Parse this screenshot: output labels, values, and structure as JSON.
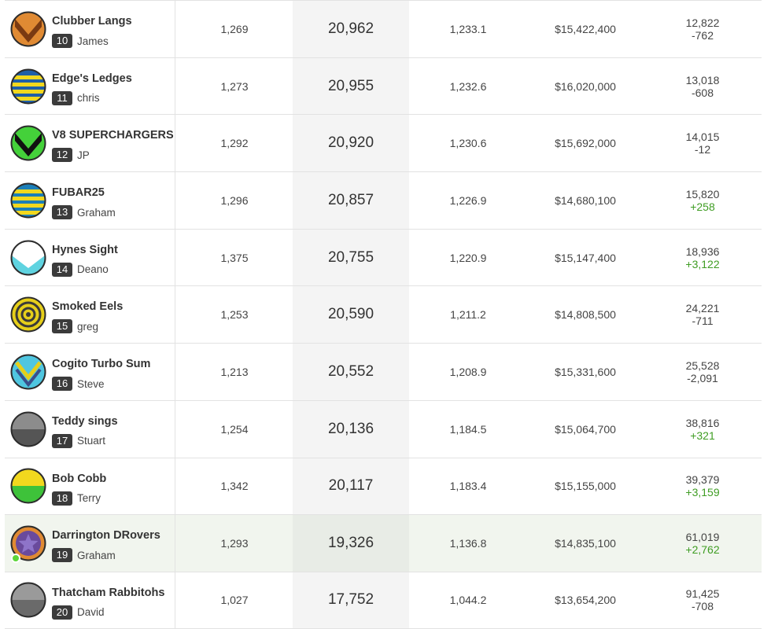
{
  "rows": [
    {
      "team": "Clubber Langs",
      "rank": "10",
      "coach": "James",
      "games": "1,269",
      "points": "20,962",
      "average": "1,233.1",
      "value": "$15,422,400",
      "overall_rank": "12,822",
      "rank_change": "-762",
      "change_dir": "neg",
      "logo": "chevron-down-icon",
      "logo_colors": [
        "#e08a33",
        "#7a3a12"
      ],
      "highlight": false
    },
    {
      "team": "Edge's Ledges",
      "rank": "11",
      "coach": "chris",
      "games": "1,273",
      "points": "20,955",
      "average": "1,232.6",
      "value": "$16,020,000",
      "overall_rank": "13,018",
      "rank_change": "-608",
      "change_dir": "neg",
      "logo": "horizontal-stripes-icon",
      "logo_colors": [
        "#f2d81e",
        "#1f5fa8"
      ],
      "highlight": false
    },
    {
      "team": "V8 SUPERCHARGERS",
      "rank": "12",
      "coach": "JP",
      "games": "1,292",
      "points": "20,920",
      "average": "1,230.6",
      "value": "$15,692,000",
      "overall_rank": "14,015",
      "rank_change": "-12",
      "change_dir": "neg",
      "logo": "chevron-down-icon",
      "logo_colors": [
        "#44d13a",
        "#111111"
      ],
      "highlight": false
    },
    {
      "team": "FUBAR25",
      "rank": "13",
      "coach": "Graham",
      "games": "1,296",
      "points": "20,857",
      "average": "1,226.9",
      "value": "$14,680,100",
      "overall_rank": "15,820",
      "rank_change": "+258",
      "change_dir": "pos",
      "logo": "horizontal-stripes-icon",
      "logo_colors": [
        "#f2d81e",
        "#1b7fb8"
      ],
      "highlight": false
    },
    {
      "team": "Hynes Sight",
      "rank": "14",
      "coach": "Deano",
      "games": "1,375",
      "points": "20,755",
      "average": "1,220.9",
      "value": "$15,147,400",
      "overall_rank": "18,936",
      "rank_change": "+3,122",
      "change_dir": "pos",
      "logo": "v-split-icon",
      "logo_colors": [
        "#ffffff",
        "#5fd3e0"
      ],
      "highlight": false
    },
    {
      "team": "Smoked Eels",
      "rank": "15",
      "coach": "greg",
      "games": "1,253",
      "points": "20,590",
      "average": "1,211.2",
      "value": "$14,808,500",
      "overall_rank": "24,221",
      "rank_change": "-711",
      "change_dir": "neg",
      "logo": "target-rings-icon",
      "logo_colors": [
        "#e6cf1a",
        "#3a3a3a"
      ],
      "highlight": false
    },
    {
      "team": "Cogito Turbo Sum",
      "rank": "16",
      "coach": "Steve",
      "games": "1,213",
      "points": "20,552",
      "average": "1,208.9",
      "value": "$15,331,600",
      "overall_rank": "25,528",
      "rank_change": "-2,091",
      "change_dir": "neg",
      "logo": "double-chevron-icon",
      "logo_colors": [
        "#4fc6e0",
        "#e6cf1a"
      ],
      "highlight": false
    },
    {
      "team": "Teddy sings",
      "rank": "17",
      "coach": "Stuart",
      "games": "1,254",
      "points": "20,136",
      "average": "1,184.5",
      "value": "$15,064,700",
      "overall_rank": "38,816",
      "rank_change": "+321",
      "change_dir": "pos",
      "logo": "half-circle-icon",
      "logo_colors": [
        "#8c8c8c",
        "#555555"
      ],
      "highlight": false
    },
    {
      "team": "Bob Cobb",
      "rank": "18",
      "coach": "Terry",
      "games": "1,342",
      "points": "20,117",
      "average": "1,183.4",
      "value": "$15,155,000",
      "overall_rank": "39,379",
      "rank_change": "+3,159",
      "change_dir": "pos",
      "logo": "half-circle-icon",
      "logo_colors": [
        "#f2d81e",
        "#3ec23a"
      ],
      "highlight": false
    },
    {
      "team": "Darrington DRovers",
      "rank": "19",
      "coach": "Graham",
      "games": "1,293",
      "points": "19,326",
      "average": "1,136.8",
      "value": "$14,835,100",
      "overall_rank": "61,019",
      "rank_change": "+2,762",
      "change_dir": "pos",
      "logo": "star-icon",
      "logo_colors": [
        "#6a4a9c",
        "#e08a33"
      ],
      "highlight": true
    },
    {
      "team": "Thatcham Rabbitohs",
      "rank": "20",
      "coach": "David",
      "games": "1,027",
      "points": "17,752",
      "average": "1,044.2",
      "value": "$13,654,200",
      "overall_rank": "91,425",
      "rank_change": "-708",
      "change_dir": "neg",
      "logo": "half-circle-icon",
      "logo_colors": [
        "#9a9a9a",
        "#6a6a6a"
      ],
      "highlight": false
    }
  ]
}
